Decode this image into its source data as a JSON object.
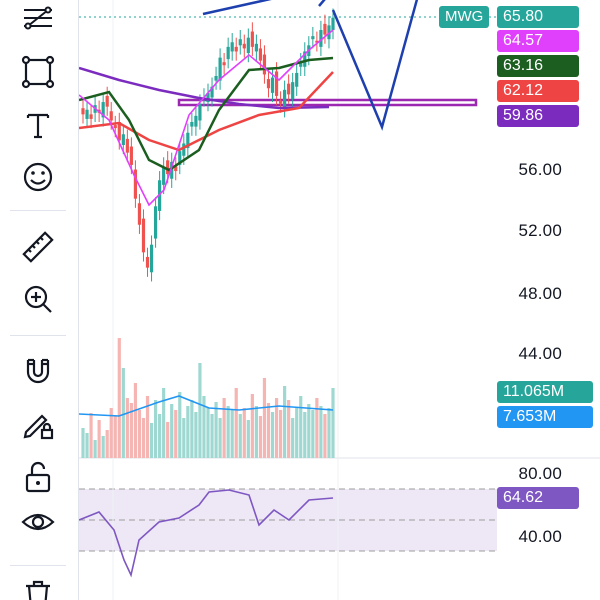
{
  "symbol": "MWG",
  "toolbar": {
    "tools": [
      {
        "name": "trend-line-tool",
        "icon": "fib-lines-icon"
      },
      {
        "name": "shape-tool",
        "icon": "rectangle-icon"
      },
      {
        "name": "text-tool",
        "icon": "text-icon"
      },
      {
        "name": "emoji-tool",
        "icon": "smiley-icon"
      },
      {
        "name": "ruler-tool",
        "icon": "ruler-icon"
      },
      {
        "name": "zoom-tool",
        "icon": "zoom-in-icon"
      },
      {
        "name": "magnet-tool",
        "icon": "magnet-icon"
      },
      {
        "name": "lock-drawing-tool",
        "icon": "pencil-lock-icon"
      },
      {
        "name": "lock-tool",
        "icon": "unlock-icon"
      },
      {
        "name": "visibility-tool",
        "icon": "eye-icon"
      },
      {
        "name": "delete-tool",
        "icon": "trash-icon"
      }
    ]
  },
  "price_axis": {
    "ticks": [
      "56.00",
      "52.00",
      "48.00",
      "44.00"
    ]
  },
  "price_tags": [
    {
      "id": "last-price",
      "label": "65.80",
      "color": "#26a69a"
    },
    {
      "id": "ma-magenta",
      "label": "64.57",
      "color": "#e040fb"
    },
    {
      "id": "ma-green",
      "label": "63.16",
      "color": "#1b5e20"
    },
    {
      "id": "ma-red",
      "label": "62.12",
      "color": "#ef4444"
    },
    {
      "id": "ma-purple",
      "label": "59.86",
      "color": "#7b2cbf"
    }
  ],
  "volume_tags": [
    {
      "id": "volume",
      "label": "11.065M",
      "color": "#26a69a"
    },
    {
      "id": "volume-ma",
      "label": "7.653M",
      "color": "#2196f3"
    }
  ],
  "rsi": {
    "ticks": [
      "80.00",
      "40.00"
    ],
    "value_label": "64.62",
    "value_color": "#7e57c2"
  },
  "colors": {
    "up": "#26a69a",
    "down": "#ef5350",
    "blue_line": "#1e40af",
    "rsi": "#7e57c2"
  }
}
